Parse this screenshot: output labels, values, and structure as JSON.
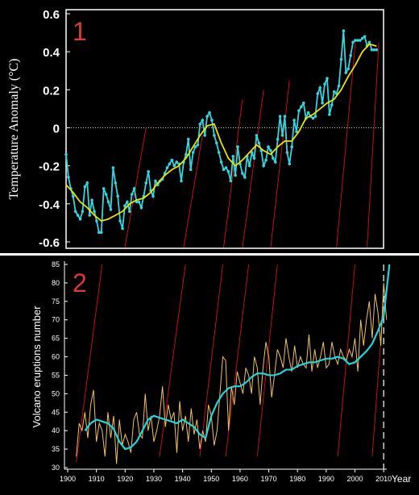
{
  "chart_data": [
    {
      "panel_label": "1",
      "type": "line",
      "ylabel": "Temperature Anomaly (°C)",
      "ylim": [
        -0.6,
        0.6
      ],
      "y_ticks": [
        "0.6",
        "0.4",
        "0.2",
        "0",
        "-0.2",
        "-0.4",
        "-0.6"
      ],
      "xlim": [
        1880,
        2015
      ],
      "colors": {
        "annual": "#33d6e0",
        "smoothed": "#f0e000",
        "reference": "#c01010",
        "zero_line": "#cccccc"
      },
      "series": [
        {
          "style": "cyan-with-markers",
          "x": [
            1880,
            1881,
            1882,
            1883,
            1884,
            1885,
            1886,
            1887,
            1888,
            1889,
            1890,
            1891,
            1892,
            1893,
            1894,
            1895,
            1896,
            1897,
            1898,
            1899,
            1900,
            1901,
            1902,
            1903,
            1904,
            1905,
            1906,
            1907,
            1908,
            1909,
            1910,
            1911,
            1912,
            1913,
            1914,
            1915,
            1916,
            1917,
            1918,
            1919,
            1920,
            1921,
            1922,
            1923,
            1924,
            1925,
            1926,
            1927,
            1928,
            1929,
            1930,
            1931,
            1932,
            1933,
            1934,
            1935,
            1936,
            1937,
            1938,
            1939,
            1940,
            1941,
            1942,
            1943,
            1944,
            1945,
            1946,
            1947,
            1948,
            1949,
            1950,
            1951,
            1952,
            1953,
            1954,
            1955,
            1956,
            1957,
            1958,
            1959,
            1960,
            1961,
            1962,
            1963,
            1964,
            1965,
            1966,
            1967,
            1968,
            1969,
            1970,
            1971,
            1972,
            1973,
            1974,
            1975,
            1976,
            1977,
            1978,
            1979,
            1980,
            1981,
            1982,
            1983,
            1984,
            1985,
            1986,
            1987,
            1988,
            1989,
            1990,
            1991,
            1992,
            1993,
            1994,
            1995,
            1996,
            1997,
            1998,
            1999,
            2000,
            2001,
            2002,
            2003,
            2004,
            2005,
            2006,
            2007,
            2008,
            2009,
            2010,
            2011,
            2012
          ],
          "y": [
            -0.14,
            -0.26,
            -0.32,
            -0.36,
            -0.44,
            -0.46,
            -0.48,
            -0.44,
            -0.31,
            -0.29,
            -0.46,
            -0.38,
            -0.44,
            -0.49,
            -0.55,
            -0.55,
            -0.32,
            -0.35,
            -0.39,
            -0.43,
            -0.21,
            -0.29,
            -0.36,
            -0.49,
            -0.53,
            -0.41,
            -0.39,
            -0.44,
            -0.35,
            -0.32,
            -0.39,
            -0.39,
            -0.42,
            -0.36,
            -0.29,
            -0.23,
            -0.33,
            -0.36,
            -0.28,
            -0.3,
            -0.28,
            -0.27,
            -0.24,
            -0.21,
            -0.19,
            -0.17,
            -0.2,
            -0.18,
            -0.19,
            -0.28,
            -0.18,
            -0.14,
            -0.06,
            -0.22,
            -0.13,
            -0.1,
            -0.09,
            0.02,
            0.04,
            -0.04,
            0.06,
            0.08,
            0.04,
            -0.04,
            -0.08,
            -0.13,
            -0.18,
            -0.22,
            -0.21,
            -0.23,
            -0.28,
            -0.15,
            -0.25,
            -0.1,
            -0.19,
            -0.24,
            -0.26,
            -0.15,
            -0.2,
            -0.13,
            -0.16,
            -0.04,
            -0.08,
            -0.12,
            -0.2,
            -0.17,
            -0.1,
            -0.12,
            -0.16,
            -0.18,
            -0.06,
            0.06,
            -0.04,
            0.06,
            -0.13,
            -0.19,
            -0.1,
            0.04,
            -0.02,
            0.09,
            0.11,
            0.13,
            0.05,
            0.08,
            0.06,
            0.05,
            0.06,
            0.18,
            0.21,
            0.13,
            0.23,
            0.26,
            0.07,
            0.12,
            0.19,
            0.18,
            0.22,
            0.36,
            0.51,
            0.29,
            0.31,
            0.38,
            0.45,
            0.46,
            0.46,
            0.46,
            0.47,
            0.48,
            0.43,
            0.45,
            0.41,
            0.41,
            0.41
          ]
        },
        {
          "style": "yellow-smoothed",
          "x": [
            1880,
            1883,
            1886,
            1889,
            1892,
            1895,
            1898,
            1901,
            1904,
            1907,
            1910,
            1913,
            1916,
            1919,
            1922,
            1925,
            1928,
            1931,
            1934,
            1937,
            1940,
            1943,
            1946,
            1949,
            1952,
            1955,
            1958,
            1961,
            1964,
            1967,
            1970,
            1973,
            1976,
            1979,
            1982,
            1985,
            1988,
            1991,
            1994,
            1997,
            2000,
            2003,
            2006,
            2009,
            2012
          ],
          "y": [
            -0.3,
            -0.34,
            -0.39,
            -0.42,
            -0.46,
            -0.49,
            -0.48,
            -0.46,
            -0.44,
            -0.4,
            -0.38,
            -0.37,
            -0.34,
            -0.29,
            -0.25,
            -0.22,
            -0.2,
            -0.16,
            -0.1,
            -0.04,
            0.01,
            0.02,
            -0.08,
            -0.16,
            -0.2,
            -0.17,
            -0.13,
            -0.09,
            -0.12,
            -0.14,
            -0.1,
            -0.07,
            -0.07,
            -0.02,
            0.05,
            0.07,
            0.1,
            0.13,
            0.15,
            0.2,
            0.27,
            0.33,
            0.4,
            0.44,
            0.43
          ]
        }
      ],
      "reference_lines": [
        {
          "x": [
            1905,
            1914
          ],
          "y": [
            -0.63,
            0.0
          ]
        },
        {
          "x": [
            1930,
            1938
          ],
          "y": [
            -0.63,
            -0.04
          ]
        },
        {
          "x": [
            1947,
            1955
          ],
          "y": [
            -0.63,
            0.15
          ]
        },
        {
          "x": [
            1955,
            1964
          ],
          "y": [
            -0.63,
            0.2
          ]
        },
        {
          "x": [
            1967,
            1975
          ],
          "y": [
            -0.63,
            0.25
          ]
        },
        {
          "x": [
            1995,
            2003
          ],
          "y": [
            -0.63,
            0.45
          ]
        },
        {
          "x": [
            2008,
            2013
          ],
          "y": [
            -0.63,
            0.45
          ]
        }
      ]
    },
    {
      "panel_label": "2",
      "type": "line",
      "ylabel": "Volcano  eruptions  number",
      "ylim": [
        30,
        85
      ],
      "y_ticks": [
        "85",
        "80",
        "75",
        "70",
        "65",
        "60",
        "55",
        "50",
        "45",
        "40",
        "35",
        "30"
      ],
      "xlim": [
        1900,
        2015
      ],
      "x_ticks": [
        "1900",
        "1910",
        "1920",
        "1930",
        "1940",
        "1950",
        "1960",
        "1970",
        "1980",
        "1990",
        "2000",
        "2010"
      ],
      "xlabel": "Year",
      "colors": {
        "annual": "#f2c060",
        "smoothed": "#22d4dc",
        "reference": "#c01010",
        "marker_line": "#dddddd"
      },
      "dashed_marker_x": 2010,
      "series": [
        {
          "style": "orange-annual",
          "x": [
            1903,
            1904,
            1905,
            1906,
            1907,
            1908,
            1909,
            1910,
            1911,
            1912,
            1913,
            1914,
            1915,
            1916,
            1917,
            1918,
            1919,
            1920,
            1921,
            1922,
            1923,
            1924,
            1925,
            1926,
            1927,
            1928,
            1929,
            1930,
            1931,
            1932,
            1933,
            1934,
            1935,
            1936,
            1937,
            1938,
            1939,
            1940,
            1941,
            1942,
            1943,
            1944,
            1945,
            1946,
            1947,
            1948,
            1949,
            1950,
            1951,
            1952,
            1953,
            1954,
            1955,
            1956,
            1957,
            1958,
            1959,
            1960,
            1961,
            1962,
            1963,
            1964,
            1965,
            1966,
            1967,
            1968,
            1969,
            1970,
            1971,
            1972,
            1973,
            1974,
            1975,
            1976,
            1977,
            1978,
            1979,
            1980,
            1981,
            1982,
            1983,
            1984,
            1985,
            1986,
            1987,
            1988,
            1989,
            1990,
            1991,
            1992,
            1993,
            1994,
            1995,
            1996,
            1997,
            1998,
            1999,
            2000,
            2001,
            2002,
            2003,
            2004,
            2005,
            2006,
            2007,
            2008,
            2009,
            2010,
            2011
          ],
          "y": [
            33,
            42,
            40,
            45,
            38,
            47,
            51,
            37,
            42,
            40,
            33,
            45,
            38,
            44,
            31,
            43,
            36,
            39,
            37,
            34,
            43,
            45,
            39,
            38,
            50,
            40,
            44,
            37,
            40,
            44,
            52,
            41,
            47,
            43,
            45,
            34,
            48,
            40,
            44,
            37,
            46,
            39,
            43,
            35,
            40,
            37,
            47,
            44,
            36,
            40,
            50,
            60,
            59,
            40,
            52,
            47,
            56,
            53,
            50,
            57,
            55,
            50,
            60,
            57,
            47,
            57,
            64,
            60,
            49,
            55,
            62,
            60,
            57,
            65,
            60,
            56,
            63,
            57,
            60,
            58,
            57,
            66,
            56,
            62,
            57,
            60,
            64,
            57,
            58,
            64,
            60,
            58,
            62,
            60,
            59,
            62,
            60,
            65,
            56,
            70,
            63,
            70,
            75,
            65,
            77,
            72,
            63,
            80,
            70
          ]
        },
        {
          "style": "cyan-smoothed",
          "x": [
            1906,
            1908,
            1910,
            1912,
            1914,
            1916,
            1918,
            1920,
            1922,
            1924,
            1926,
            1928,
            1930,
            1932,
            1934,
            1936,
            1938,
            1940,
            1942,
            1944,
            1946,
            1948,
            1950,
            1952,
            1954,
            1956,
            1958,
            1960,
            1962,
            1964,
            1966,
            1968,
            1970,
            1972,
            1974,
            1976,
            1978,
            1980,
            1982,
            1984,
            1986,
            1988,
            1990,
            1992,
            1994,
            1996,
            1998,
            2000,
            2002,
            2004,
            2006,
            2008,
            2010,
            2012
          ],
          "y": [
            40,
            42,
            43,
            42.5,
            42,
            40.5,
            37,
            35,
            35.5,
            37,
            40,
            43,
            44,
            43.5,
            43,
            42.5,
            42,
            43,
            42,
            41,
            39,
            38,
            44,
            47.5,
            50,
            51.5,
            52,
            52,
            53,
            54.5,
            55.5,
            55.5,
            55,
            55,
            55.5,
            56.5,
            56.5,
            57.5,
            58,
            58.5,
            58.5,
            59,
            59.5,
            59.5,
            60,
            59.5,
            58,
            58.5,
            60,
            61.5,
            63.5,
            67,
            71,
            85
          ]
        }
      ],
      "reference_lines": [
        {
          "x": [
            1903,
            1912
          ],
          "y": [
            31.5,
            85
          ]
        },
        {
          "x": [
            1932,
            1941
          ],
          "y": [
            33,
            85
          ]
        },
        {
          "x": [
            1946,
            1954
          ],
          "y": [
            33,
            85
          ]
        },
        {
          "x": [
            1955,
            1963
          ],
          "y": [
            33,
            85
          ]
        },
        {
          "x": [
            1966,
            1973
          ],
          "y": [
            33,
            85
          ]
        },
        {
          "x": [
            1994,
            2000
          ],
          "y": [
            33,
            85
          ]
        },
        {
          "x": [
            2006,
            2010
          ],
          "y": [
            33,
            75
          ]
        }
      ]
    }
  ]
}
